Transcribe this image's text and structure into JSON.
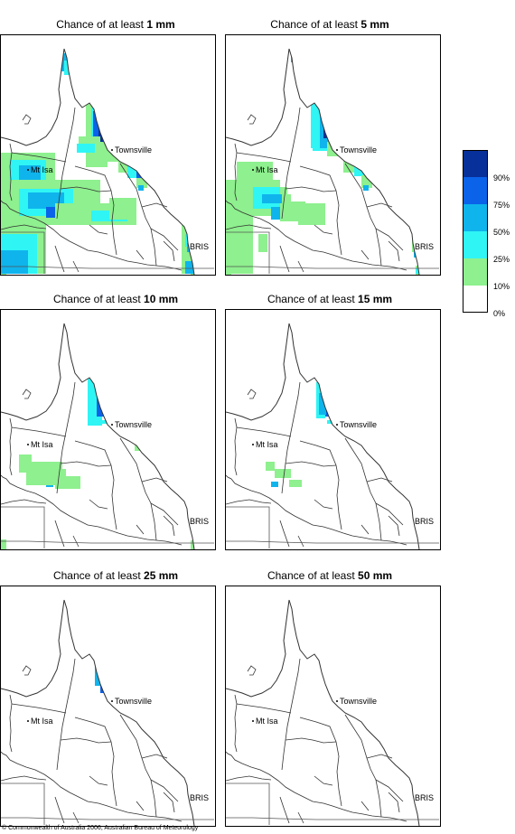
{
  "panels": [
    {
      "prefix": "Chance of at least ",
      "amount": "1 mm",
      "level": 5
    },
    {
      "prefix": "Chance of at least ",
      "amount": "5 mm",
      "level": 4
    },
    {
      "prefix": "Chance of at least ",
      "amount": "10 mm",
      "level": 3
    },
    {
      "prefix": "Chance of at least ",
      "amount": "15 mm",
      "level": 2
    },
    {
      "prefix": "Chance of at least ",
      "amount": "25 mm",
      "level": 1
    },
    {
      "prefix": "Chance of at least ",
      "amount": "50 mm",
      "level": 0
    }
  ],
  "places": {
    "townsville": "Townsville",
    "mtisa": "Mt Isa",
    "bris": "BRIS"
  },
  "legend": {
    "colors": [
      "#08309a",
      "#0a63e8",
      "#0fb4ec",
      "#2ff5f5",
      "#8ef08e",
      "#ffffff"
    ],
    "labels": [
      "90%",
      "75%",
      "50%",
      "25%",
      "10%",
      "0%"
    ]
  },
  "copyright": "© Commonwealth of Australia 2006, Australian Bureau of Meteorology"
}
